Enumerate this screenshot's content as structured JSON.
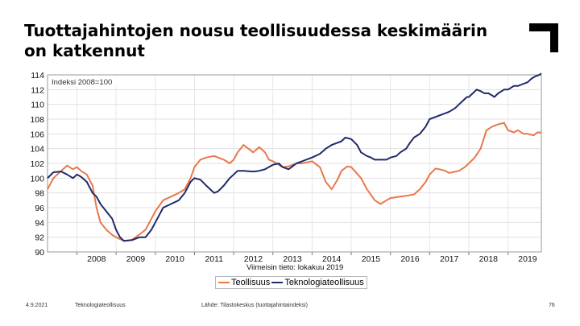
{
  "slide": {
    "title": "Tuottajahintojen nousu teollisuudessa keskimäärin on katkennut",
    "footer_date": "4.9.2021",
    "footer_org": "Teknologiateollisuus",
    "footer_source": "Lähde: Tilastokeskus (tuottajahintaindeksi)",
    "page_number": "76"
  },
  "chart_data": {
    "type": "line",
    "index_label": "Indeksi 2008=100",
    "last_data_note": "Viimeisin tieto: lokakuu 2019",
    "legend_position": "bottom",
    "grid": true,
    "ylim": [
      90,
      114
    ],
    "yticks": [
      90,
      92,
      94,
      96,
      98,
      100,
      102,
      104,
      106,
      108,
      110,
      112,
      114
    ],
    "xlim": [
      2007.25,
      2019.85
    ],
    "xticks": [
      "2008",
      "2009",
      "2010",
      "2011",
      "2012",
      "2013",
      "2014",
      "2015",
      "2016",
      "2017",
      "2018",
      "2019"
    ],
    "series": [
      {
        "name": "Teollisuus",
        "color": "#e8784a",
        "points": [
          [
            2007.25,
            98.5
          ],
          [
            2007.4,
            100.0
          ],
          [
            2007.6,
            101.0
          ],
          [
            2007.75,
            101.7
          ],
          [
            2007.9,
            101.2
          ],
          [
            2008.0,
            101.5
          ],
          [
            2008.1,
            101.0
          ],
          [
            2008.25,
            100.5
          ],
          [
            2008.4,
            99.0
          ],
          [
            2008.5,
            96.0
          ],
          [
            2008.6,
            94.0
          ],
          [
            2008.75,
            93.0
          ],
          [
            2008.9,
            92.3
          ],
          [
            2009.0,
            92.0
          ],
          [
            2009.2,
            91.5
          ],
          [
            2009.4,
            91.6
          ],
          [
            2009.5,
            92.0
          ],
          [
            2009.75,
            93.0
          ],
          [
            2009.9,
            94.5
          ],
          [
            2010.0,
            95.5
          ],
          [
            2010.2,
            97.0
          ],
          [
            2010.4,
            97.5
          ],
          [
            2010.6,
            98.0
          ],
          [
            2010.75,
            98.5
          ],
          [
            2010.9,
            100.0
          ],
          [
            2011.0,
            101.5
          ],
          [
            2011.15,
            102.5
          ],
          [
            2011.3,
            102.8
          ],
          [
            2011.5,
            103.0
          ],
          [
            2011.75,
            102.5
          ],
          [
            2011.9,
            102.0
          ],
          [
            2012.0,
            102.5
          ],
          [
            2012.1,
            103.5
          ],
          [
            2012.25,
            104.5
          ],
          [
            2012.5,
            103.5
          ],
          [
            2012.65,
            104.2
          ],
          [
            2012.8,
            103.5
          ],
          [
            2012.9,
            102.5
          ],
          [
            2013.0,
            102.3
          ],
          [
            2013.25,
            101.5
          ],
          [
            2013.4,
            101.6
          ],
          [
            2013.6,
            102.0
          ],
          [
            2013.75,
            102.0
          ],
          [
            2014.0,
            102.3
          ],
          [
            2014.2,
            101.5
          ],
          [
            2014.35,
            99.5
          ],
          [
            2014.5,
            98.5
          ],
          [
            2014.65,
            99.8
          ],
          [
            2014.75,
            101.0
          ],
          [
            2014.9,
            101.6
          ],
          [
            2015.0,
            101.5
          ],
          [
            2015.25,
            100.0
          ],
          [
            2015.4,
            98.5
          ],
          [
            2015.6,
            97.0
          ],
          [
            2015.75,
            96.5
          ],
          [
            2015.9,
            97.0
          ],
          [
            2016.0,
            97.3
          ],
          [
            2016.25,
            97.5
          ],
          [
            2016.4,
            97.6
          ],
          [
            2016.6,
            97.8
          ],
          [
            2016.75,
            98.5
          ],
          [
            2016.9,
            99.5
          ],
          [
            2017.0,
            100.5
          ],
          [
            2017.15,
            101.3
          ],
          [
            2017.25,
            101.2
          ],
          [
            2017.4,
            101.0
          ],
          [
            2017.5,
            100.7
          ],
          [
            2017.75,
            101.0
          ],
          [
            2017.9,
            101.5
          ],
          [
            2018.0,
            102.0
          ],
          [
            2018.15,
            102.8
          ],
          [
            2018.3,
            104.0
          ],
          [
            2018.45,
            106.5
          ],
          [
            2018.6,
            107.0
          ],
          [
            2018.75,
            107.3
          ],
          [
            2018.9,
            107.5
          ],
          [
            2019.0,
            106.5
          ],
          [
            2019.15,
            106.2
          ],
          [
            2019.25,
            106.5
          ],
          [
            2019.4,
            106.0
          ],
          [
            2019.5,
            106.0
          ],
          [
            2019.65,
            105.8
          ],
          [
            2019.75,
            106.2
          ],
          [
            2019.85,
            106.2
          ]
        ]
      },
      {
        "name": "Teknologiateollisuus",
        "color": "#1f2a6b",
        "points": [
          [
            2007.25,
            100.0
          ],
          [
            2007.4,
            100.8
          ],
          [
            2007.6,
            100.9
          ],
          [
            2007.75,
            100.5
          ],
          [
            2007.9,
            100.0
          ],
          [
            2008.0,
            100.5
          ],
          [
            2008.1,
            100.2
          ],
          [
            2008.25,
            99.5
          ],
          [
            2008.4,
            98.0
          ],
          [
            2008.5,
            97.5
          ],
          [
            2008.6,
            96.5
          ],
          [
            2008.75,
            95.5
          ],
          [
            2008.9,
            94.5
          ],
          [
            2009.0,
            93.0
          ],
          [
            2009.1,
            92.0
          ],
          [
            2009.2,
            91.5
          ],
          [
            2009.4,
            91.6
          ],
          [
            2009.5,
            91.8
          ],
          [
            2009.6,
            92.0
          ],
          [
            2009.75,
            92.0
          ],
          [
            2009.9,
            93.0
          ],
          [
            2010.0,
            94.0
          ],
          [
            2010.1,
            95.0
          ],
          [
            2010.2,
            96.0
          ],
          [
            2010.4,
            96.5
          ],
          [
            2010.6,
            97.0
          ],
          [
            2010.75,
            98.0
          ],
          [
            2010.9,
            99.5
          ],
          [
            2011.0,
            100.0
          ],
          [
            2011.15,
            99.8
          ],
          [
            2011.3,
            99.0
          ],
          [
            2011.4,
            98.5
          ],
          [
            2011.5,
            98.0
          ],
          [
            2011.6,
            98.2
          ],
          [
            2011.75,
            99.0
          ],
          [
            2011.9,
            100.0
          ],
          [
            2012.0,
            100.5
          ],
          [
            2012.1,
            101.0
          ],
          [
            2012.25,
            101.0
          ],
          [
            2012.5,
            100.9
          ],
          [
            2012.65,
            101.0
          ],
          [
            2012.8,
            101.2
          ],
          [
            2013.0,
            101.8
          ],
          [
            2013.15,
            102.0
          ],
          [
            2013.25,
            101.5
          ],
          [
            2013.4,
            101.2
          ],
          [
            2013.5,
            101.6
          ],
          [
            2013.6,
            102.0
          ],
          [
            2013.75,
            102.3
          ],
          [
            2014.0,
            102.8
          ],
          [
            2014.2,
            103.3
          ],
          [
            2014.35,
            104.0
          ],
          [
            2014.5,
            104.5
          ],
          [
            2014.65,
            104.8
          ],
          [
            2014.75,
            105.0
          ],
          [
            2014.85,
            105.5
          ],
          [
            2015.0,
            105.3
          ],
          [
            2015.15,
            104.5
          ],
          [
            2015.25,
            103.5
          ],
          [
            2015.4,
            103.0
          ],
          [
            2015.5,
            102.8
          ],
          [
            2015.6,
            102.5
          ],
          [
            2015.75,
            102.5
          ],
          [
            2015.9,
            102.5
          ],
          [
            2016.0,
            102.8
          ],
          [
            2016.15,
            103.0
          ],
          [
            2016.25,
            103.5
          ],
          [
            2016.4,
            104.0
          ],
          [
            2016.5,
            104.8
          ],
          [
            2016.6,
            105.5
          ],
          [
            2016.75,
            106.0
          ],
          [
            2016.9,
            107.0
          ],
          [
            2017.0,
            108.0
          ],
          [
            2017.15,
            108.3
          ],
          [
            2017.25,
            108.5
          ],
          [
            2017.4,
            108.8
          ],
          [
            2017.5,
            109.0
          ],
          [
            2017.65,
            109.5
          ],
          [
            2017.75,
            110.0
          ],
          [
            2017.85,
            110.5
          ],
          [
            2017.95,
            111.0
          ],
          [
            2018.0,
            111.0
          ],
          [
            2018.1,
            111.5
          ],
          [
            2018.2,
            112.0
          ],
          [
            2018.3,
            111.8
          ],
          [
            2018.4,
            111.5
          ],
          [
            2018.5,
            111.5
          ],
          [
            2018.6,
            111.2
          ],
          [
            2018.65,
            111.0
          ],
          [
            2018.75,
            111.5
          ],
          [
            2018.9,
            112.0
          ],
          [
            2019.0,
            112.0
          ],
          [
            2019.15,
            112.5
          ],
          [
            2019.25,
            112.5
          ],
          [
            2019.4,
            112.8
          ],
          [
            2019.5,
            113.0
          ],
          [
            2019.6,
            113.5
          ],
          [
            2019.7,
            113.8
          ],
          [
            2019.8,
            114.0
          ],
          [
            2019.85,
            114.2
          ]
        ]
      }
    ]
  }
}
